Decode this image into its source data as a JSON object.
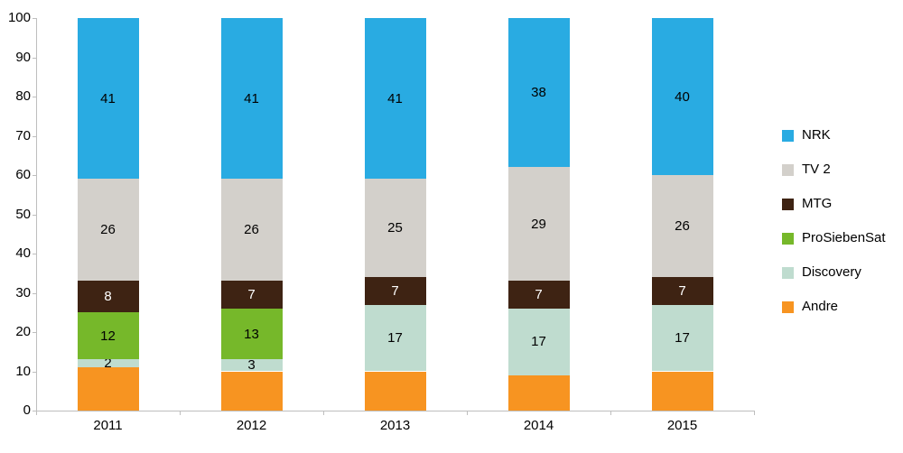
{
  "chart_data": {
    "type": "bar",
    "stacked": true,
    "title": "",
    "xlabel": "",
    "ylabel": "",
    "categories": [
      "2011",
      "2012",
      "2013",
      "2014",
      "2015"
    ],
    "series": [
      {
        "name": "Andre",
        "color": "#F79421",
        "values": [
          11,
          10,
          10,
          9,
          10
        ],
        "show_labels": false
      },
      {
        "name": "Discovery",
        "color": "#BFDCCF",
        "values": [
          2,
          3,
          17,
          17,
          17
        ]
      },
      {
        "name": "ProSiebenSat",
        "color": "#76B82A",
        "values": [
          12,
          13,
          0,
          0,
          0
        ]
      },
      {
        "name": "MTG",
        "color": "#3E2313",
        "values": [
          8,
          7,
          7,
          7,
          7
        ],
        "label_color": "#FFFFFF"
      },
      {
        "name": "TV 2",
        "color": "#D3D0CB",
        "values": [
          26,
          26,
          25,
          29,
          26
        ]
      },
      {
        "name": "NRK",
        "color": "#29ABE2",
        "values": [
          41,
          41,
          41,
          38,
          40
        ]
      }
    ],
    "legend": [
      "NRK",
      "TV 2",
      "MTG",
      "ProSiebenSat",
      "Discovery",
      "Andre"
    ],
    "legend_position": "right",
    "ylim": [
      0,
      100
    ],
    "yticks": [
      0,
      10,
      20,
      30,
      40,
      50,
      60,
      70,
      80,
      90,
      100
    ],
    "grid": false,
    "axis_color": "#BEBEBE"
  }
}
